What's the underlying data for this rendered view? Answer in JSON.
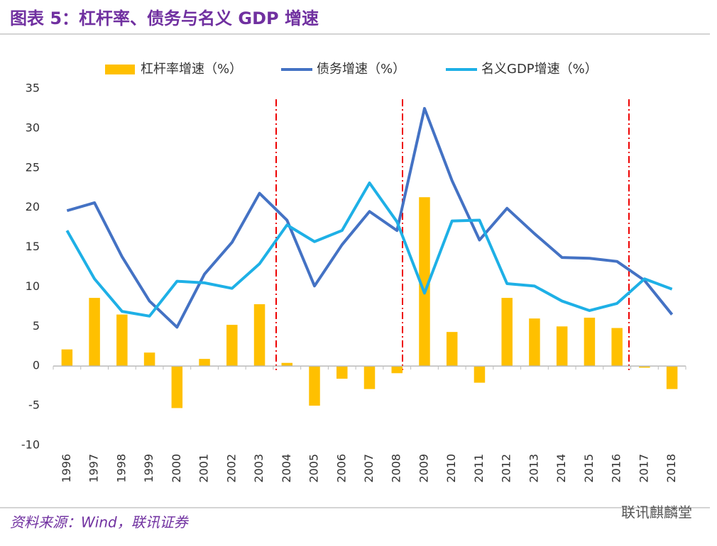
{
  "title": "图表 5：杠杆率、债务与名义 GDP 增速",
  "source": "资料来源：Wind，联讯证券",
  "watermark": "联讯麒麟堂",
  "chart_data": {
    "type": "combo",
    "categories": [
      "1996",
      "1997",
      "1998",
      "1999",
      "2000",
      "2001",
      "2002",
      "2003",
      "2004",
      "2005",
      "2006",
      "2007",
      "2008",
      "2009",
      "2010",
      "2011",
      "2012",
      "2013",
      "2014",
      "2015",
      "2016",
      "2017",
      "2018"
    ],
    "series": [
      {
        "name": "杠杆率增速（%）",
        "type": "bar",
        "color": "#ffc000",
        "values": [
          2.1,
          8.6,
          6.5,
          1.7,
          -5.3,
          0.9,
          5.2,
          7.8,
          0.4,
          -5.0,
          -1.6,
          -2.9,
          -0.9,
          21.3,
          4.3,
          -2.1,
          8.6,
          6.0,
          5.0,
          6.1,
          4.8,
          -0.2,
          -2.9
        ]
      },
      {
        "name": "债务增速（%）",
        "type": "line",
        "color": "#4472c4",
        "values": [
          19.6,
          20.6,
          13.8,
          8.2,
          4.9,
          11.6,
          15.6,
          21.8,
          18.4,
          10.1,
          15.3,
          19.5,
          17.1,
          32.5,
          23.4,
          15.9,
          19.9,
          16.7,
          13.7,
          13.6,
          13.2,
          10.8,
          6.5
        ]
      },
      {
        "name": "名义GDP增速（%）",
        "type": "line",
        "color": "#1eb0e6",
        "values": [
          17.1,
          11.0,
          6.9,
          6.3,
          10.7,
          10.5,
          9.8,
          12.9,
          17.8,
          15.7,
          17.1,
          23.1,
          18.2,
          9.2,
          18.3,
          18.4,
          10.4,
          10.1,
          8.2,
          7.0,
          7.9,
          11.0,
          9.7
        ]
      }
    ],
    "ylim": [
      -10,
      35
    ],
    "yticks": [
      -10,
      -5,
      0,
      5,
      10,
      15,
      20,
      25,
      30,
      35
    ],
    "grid": false,
    "legend": "top"
  }
}
